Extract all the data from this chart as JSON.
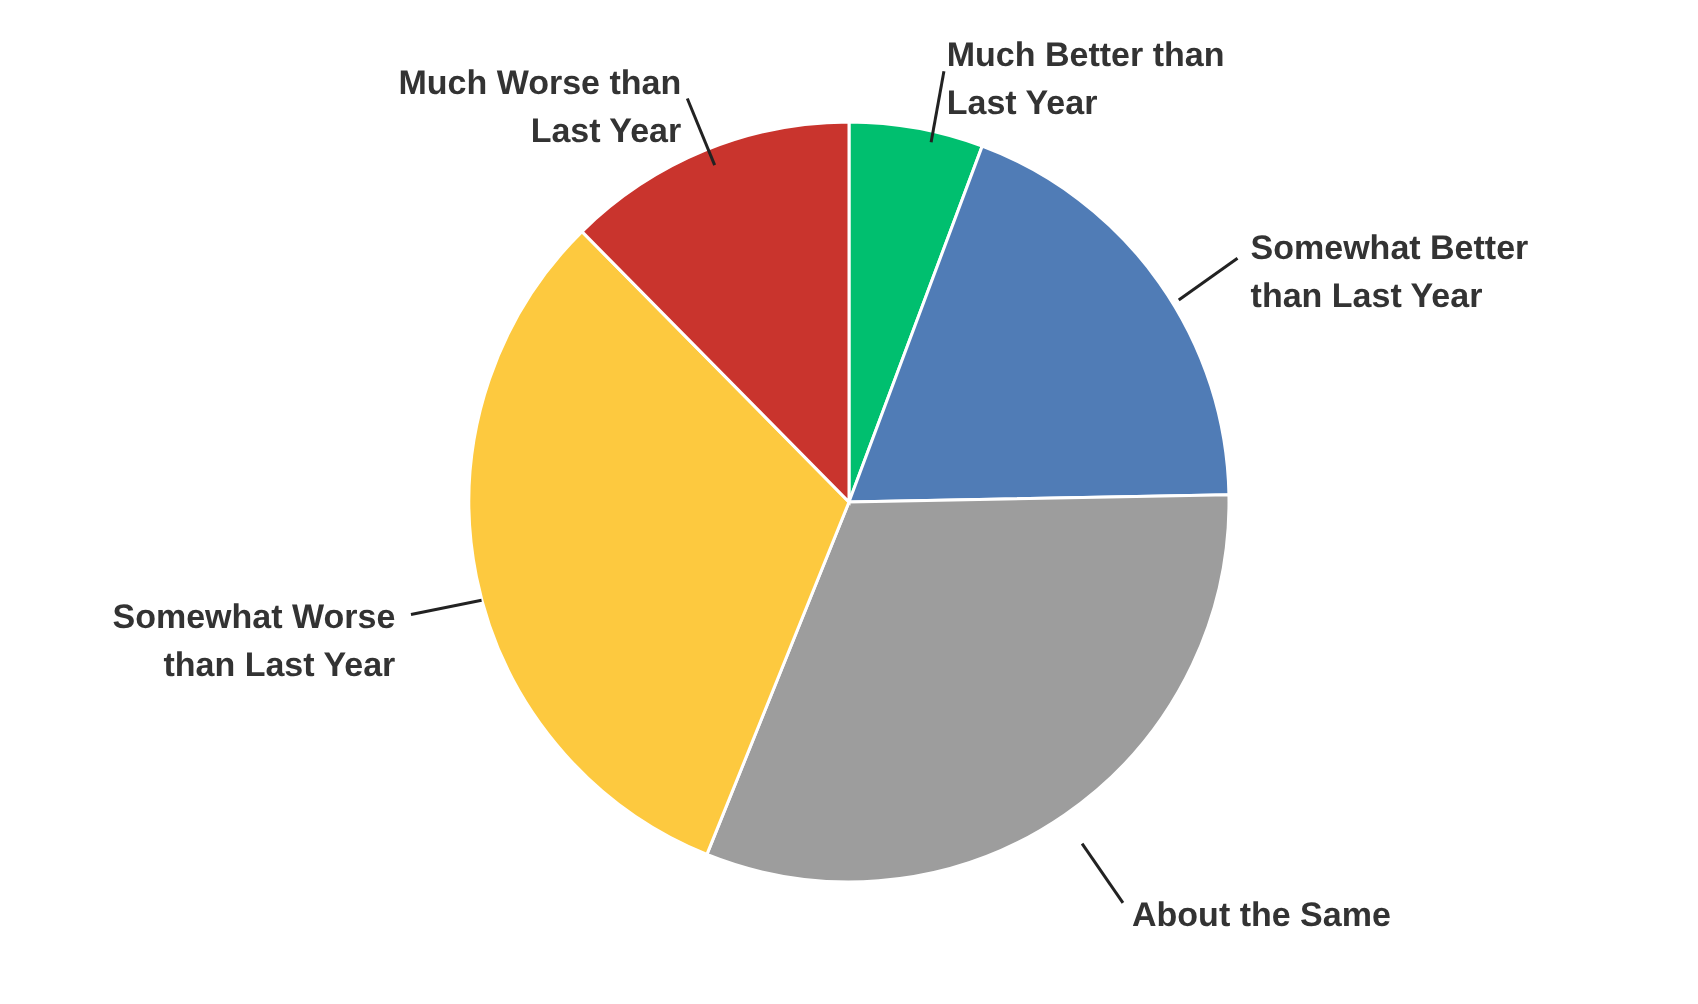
{
  "chart_data": {
    "type": "pie",
    "categories": [
      "Much Better than Last Year",
      "Somewhat Better than Last Year",
      "About the Same",
      "Somewhat Worse than Last Year",
      "Much Worse than Last Year"
    ],
    "values": [
      5.7,
      19,
      31.4,
      31.5,
      12.4
    ],
    "colors": [
      "#00bf6f",
      "#507cb6",
      "#9d9d9d",
      "#fdc93f",
      "#c9342d"
    ]
  }
}
